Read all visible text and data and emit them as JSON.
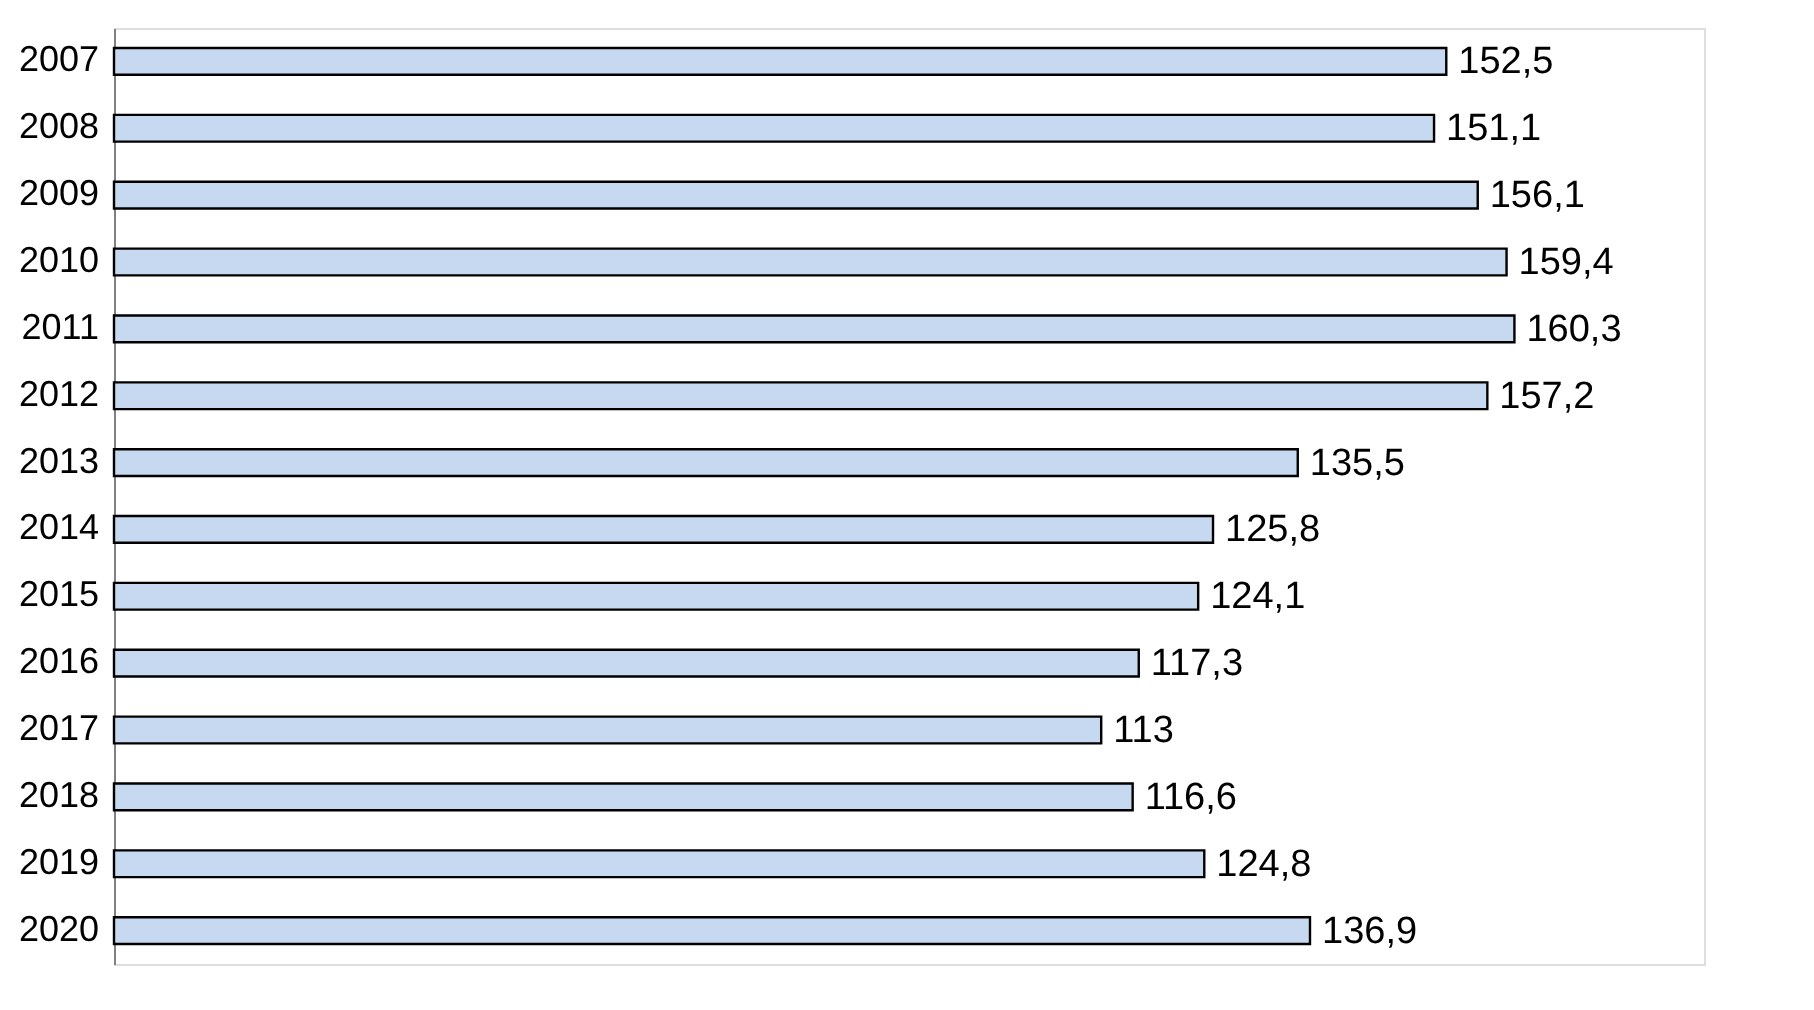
{
  "chart_data": {
    "type": "bar",
    "orientation": "horizontal",
    "categories": [
      "2007",
      "2008",
      "2009",
      "2010",
      "2011",
      "2012",
      "2013",
      "2014",
      "2015",
      "2016",
      "2017",
      "2018",
      "2019",
      "2020"
    ],
    "values": [
      152.5,
      151.1,
      156.1,
      159.4,
      160.3,
      157.2,
      135.5,
      125.8,
      124.1,
      117.3,
      113,
      116.6,
      124.8,
      136.9
    ],
    "value_labels": [
      "152,5",
      "151,1",
      "156,1",
      "159,4",
      "160,3",
      "157,2",
      "135,5",
      "125,8",
      "124,1",
      "117,3",
      "113",
      "116,6",
      "124,8",
      "136,9"
    ],
    "color": "#c6d9f1",
    "xlim": [
      0,
      182
    ]
  }
}
